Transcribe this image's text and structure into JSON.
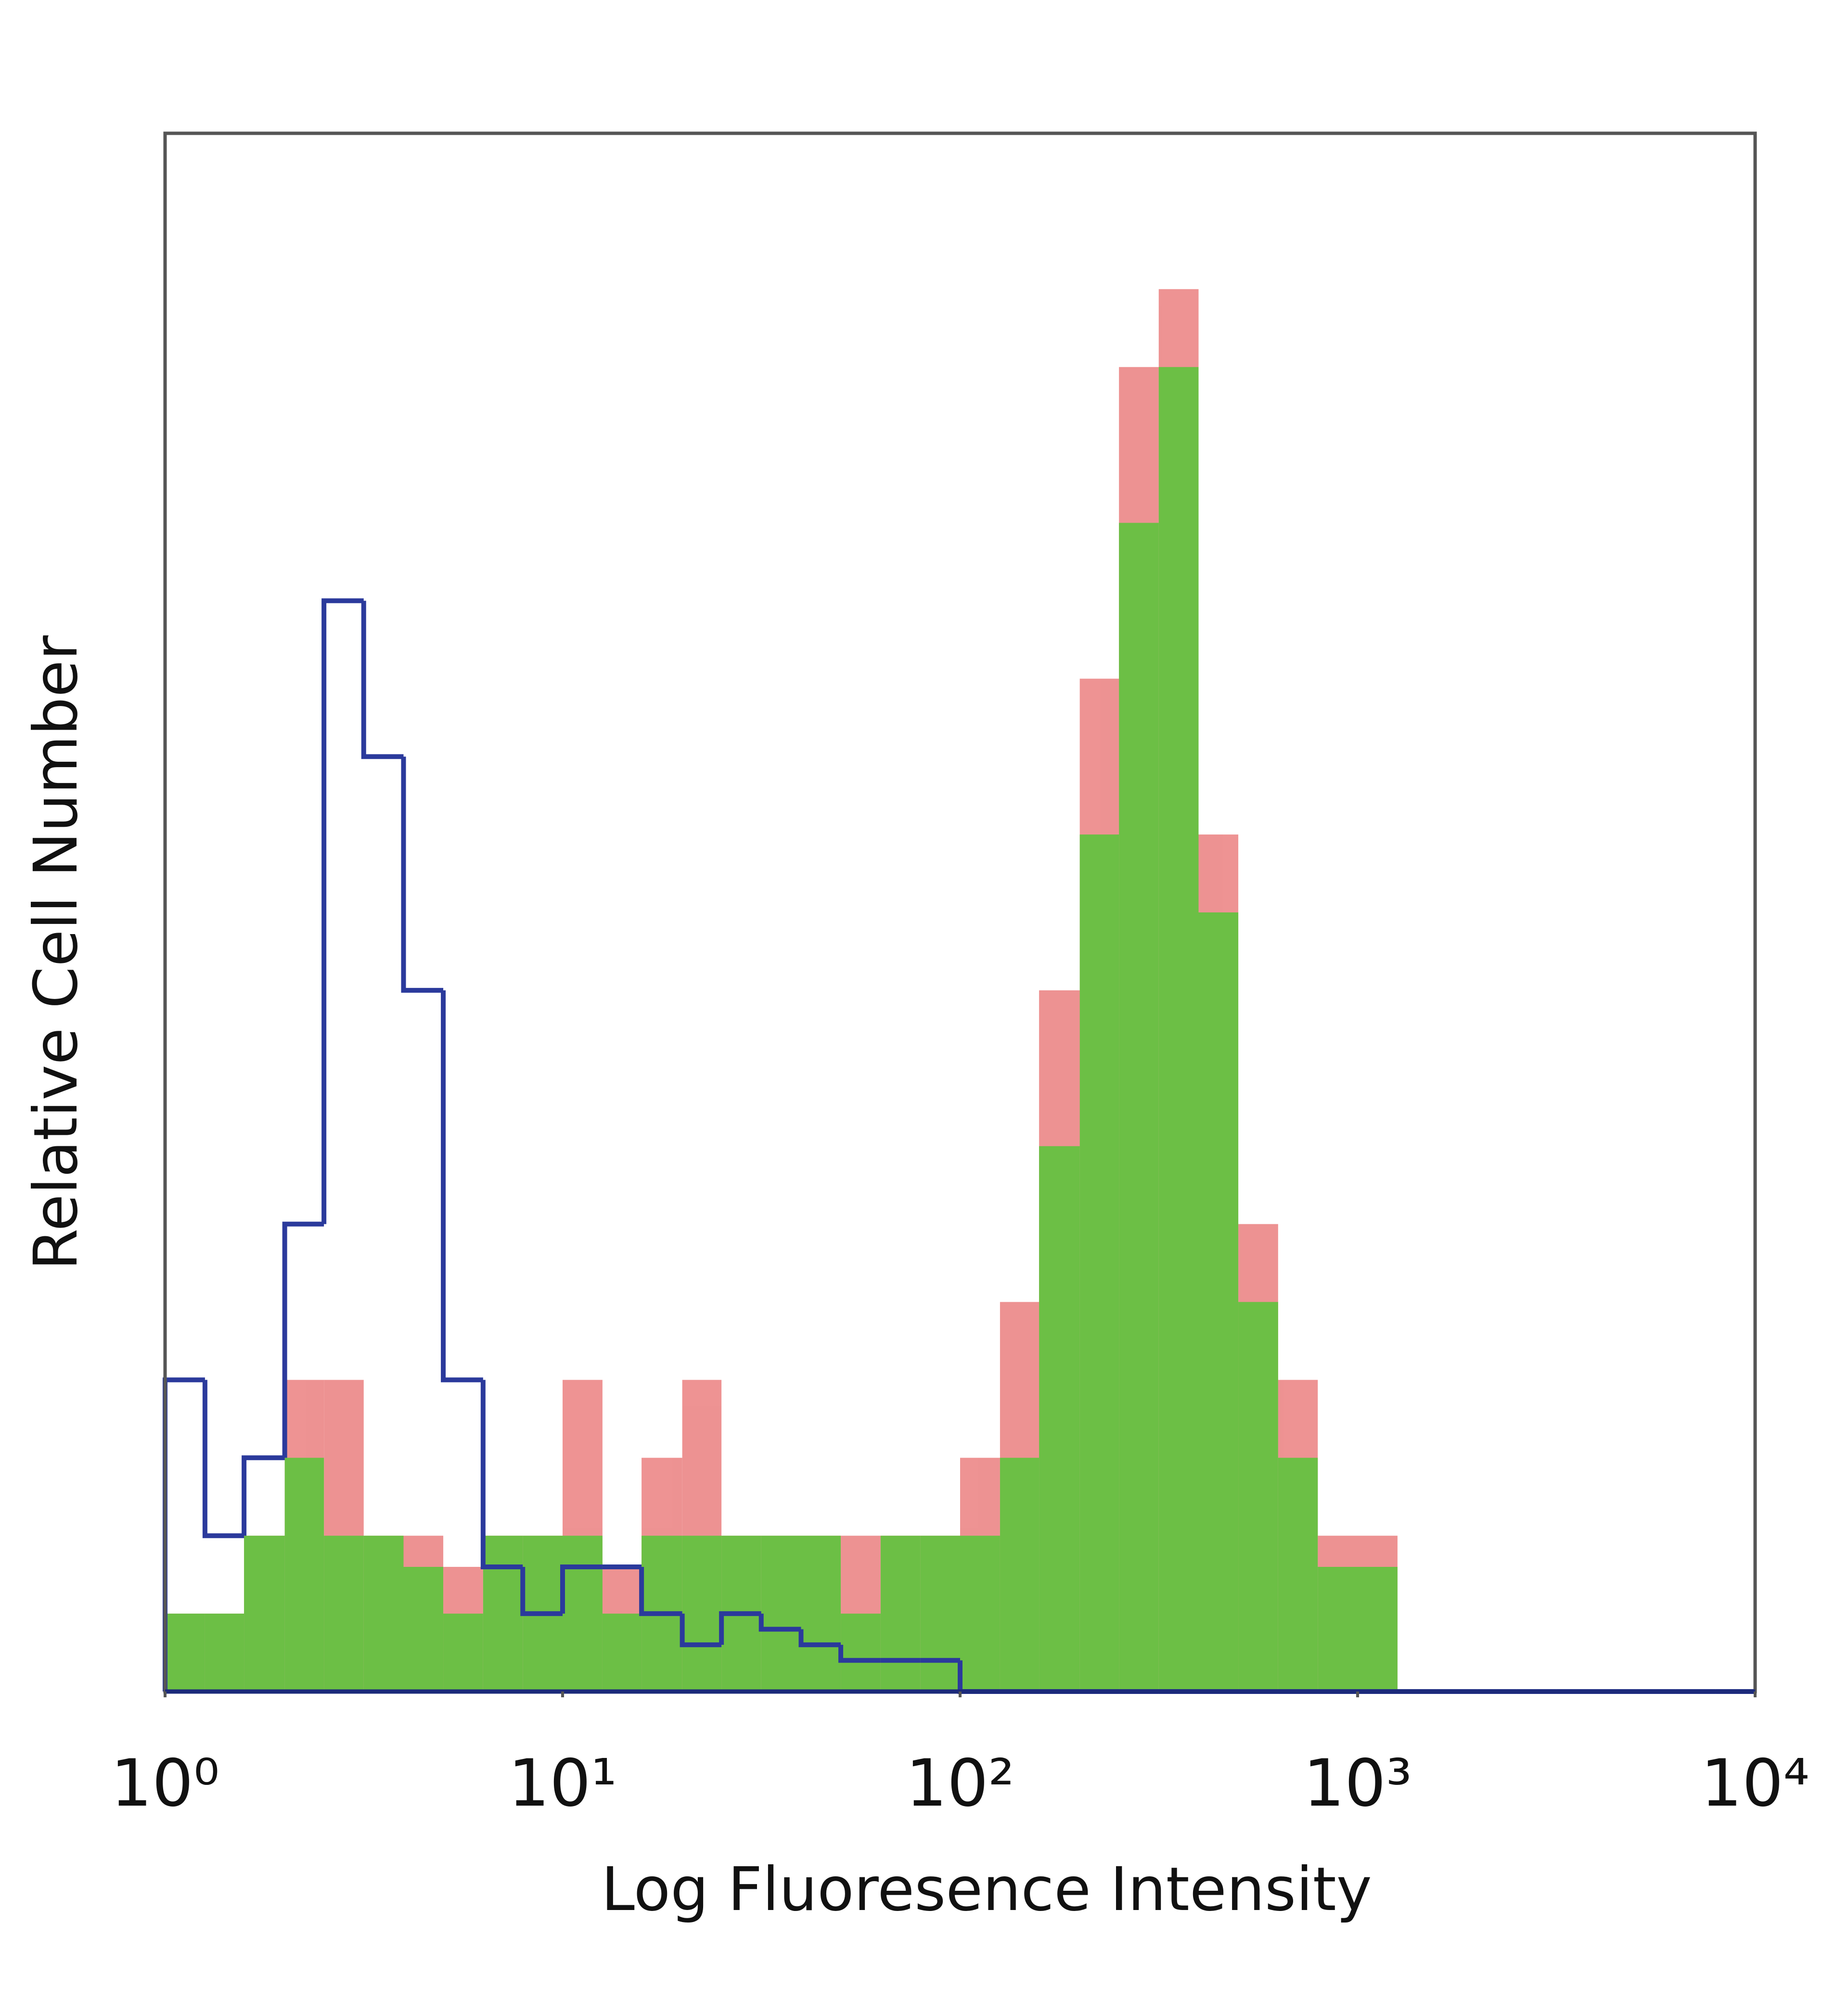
{
  "chart_data": {
    "type": "histogram",
    "x_label": "Log Fluoresence Intensity",
    "y_label": "Relative Cell Number",
    "xlog": true,
    "xlim": [
      1,
      10000
    ],
    "xticks": [
      {
        "value": 1,
        "label": "10⁰"
      },
      {
        "value": 10,
        "label": "10¹"
      },
      {
        "value": 100,
        "label": "10²"
      },
      {
        "value": 1000,
        "label": "10³"
      },
      {
        "value": 10000,
        "label": "10⁴"
      }
    ],
    "ylim": [
      0,
      100
    ],
    "bins": [
      1,
      1.26,
      1.58,
      2,
      2.51,
      3.16,
      3.98,
      5.01,
      6.31,
      7.94,
      10,
      12.6,
      15.8,
      20,
      25.1,
      31.6,
      39.8,
      50.1,
      63.1,
      79.4,
      100,
      126,
      158,
      200,
      251,
      316,
      398,
      501,
      631,
      794,
      1000,
      1260,
      1580,
      2000,
      2510,
      3160,
      3980,
      5010,
      6310,
      7940,
      10000
    ],
    "series": [
      {
        "color": "#e03a3a",
        "fill": true,
        "opacity": 0.55,
        "values": [
          5,
          5,
          10,
          20,
          20,
          10,
          10,
          8,
          10,
          10,
          20,
          8,
          15,
          20,
          10,
          10,
          10,
          10,
          10,
          10,
          15,
          25,
          45,
          65,
          85,
          90,
          55,
          30,
          20,
          10,
          10,
          0,
          0,
          0,
          0,
          0,
          0,
          0,
          0,
          0
        ]
      },
      {
        "color": "#6cbf45",
        "fill": true,
        "opacity": 1,
        "values": [
          5,
          5,
          10,
          15,
          10,
          10,
          8,
          5,
          10,
          10,
          10,
          5,
          10,
          10,
          10,
          10,
          10,
          5,
          10,
          10,
          10,
          15,
          35,
          55,
          75,
          85,
          50,
          25,
          15,
          8,
          8,
          0,
          0,
          0,
          0,
          0,
          0,
          0,
          0,
          0
        ]
      },
      {
        "color": "#2b3a9c",
        "fill": false,
        "opacity": 1,
        "values": [
          20,
          10,
          15,
          30,
          70,
          60,
          45,
          20,
          8,
          5,
          8,
          8,
          5,
          3,
          5,
          4,
          3,
          2,
          2,
          2,
          0,
          0,
          0,
          0,
          0,
          0,
          0,
          0,
          0,
          0,
          0,
          0,
          0,
          0,
          0,
          0,
          0,
          0,
          0,
          0
        ]
      }
    ]
  }
}
